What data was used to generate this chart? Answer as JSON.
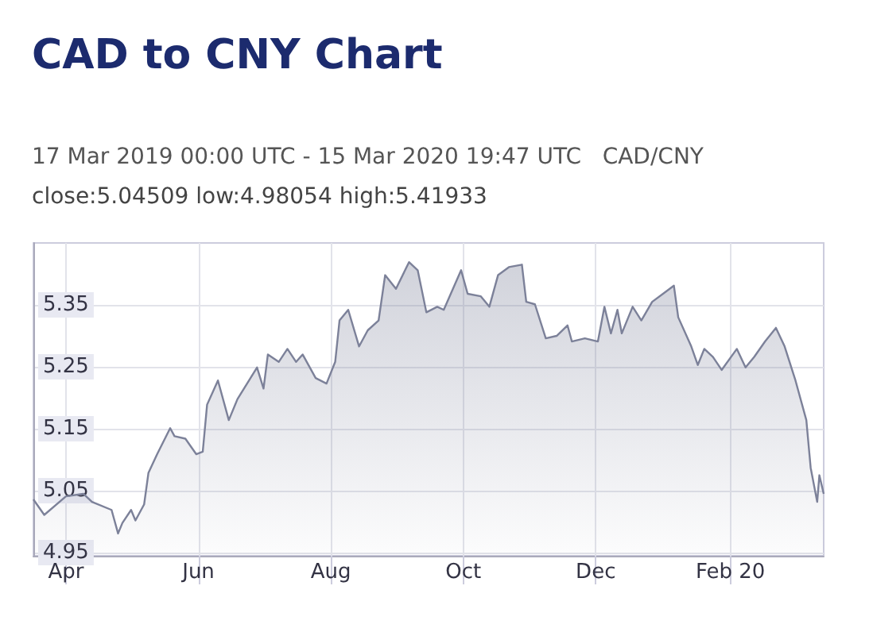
{
  "chart_data": {
    "type": "area",
    "title": "CAD to CNY Chart",
    "subtitle": "17 Mar 2019 00:00 UTC - 15 Mar 2020 19:47 UTC   CAD/CNY",
    "annotations": [
      "close:5.04509 low:4.98054 high:5.41933"
    ],
    "x": [
      "2019-03-17",
      "2019-03-22",
      "2019-04-01",
      "2019-04-09",
      "2019-04-13",
      "2019-04-22",
      "2019-04-25",
      "2019-04-27",
      "2019-05-01",
      "2019-05-03",
      "2019-05-07",
      "2019-05-09",
      "2019-05-13",
      "2019-05-19",
      "2019-05-21",
      "2019-05-26",
      "2019-05-31",
      "2019-06-03",
      "2019-06-05",
      "2019-06-10",
      "2019-06-15",
      "2019-06-19",
      "2019-06-25",
      "2019-06-28",
      "2019-07-01",
      "2019-07-03",
      "2019-07-08",
      "2019-07-12",
      "2019-07-16",
      "2019-07-19",
      "2019-07-25",
      "2019-07-30",
      "2019-08-03",
      "2019-08-05",
      "2019-08-09",
      "2019-08-14",
      "2019-08-18",
      "2019-08-23",
      "2019-08-26",
      "2019-08-31",
      "2019-09-06",
      "2019-09-10",
      "2019-09-14",
      "2019-09-19",
      "2019-09-22",
      "2019-09-30",
      "2019-10-03",
      "2019-10-09",
      "2019-10-13",
      "2019-10-17",
      "2019-10-22",
      "2019-10-28",
      "2019-10-30",
      "2019-11-03",
      "2019-11-08",
      "2019-11-13",
      "2019-11-18",
      "2019-11-20",
      "2019-11-26",
      "2019-12-02",
      "2019-12-05",
      "2019-12-08",
      "2019-12-11",
      "2019-12-13",
      "2019-12-18",
      "2019-12-22",
      "2019-12-27",
      "2020-01-01",
      "2020-01-06",
      "2020-01-08",
      "2020-01-14",
      "2020-01-17",
      "2020-01-20",
      "2020-01-24",
      "2020-01-28",
      "2020-02-04",
      "2020-02-08",
      "2020-02-12",
      "2020-02-17",
      "2020-02-22",
      "2020-02-26",
      "2020-03-02",
      "2020-03-07",
      "2020-03-09",
      "2020-03-12",
      "2020-03-13",
      "2020-03-15"
    ],
    "series": [
      {
        "color": "#7c8199",
        "values": [
          5.036,
          5.011,
          5.041,
          5.045,
          5.032,
          5.019,
          4.981,
          4.998,
          5.019,
          5.002,
          5.028,
          5.079,
          5.109,
          5.151,
          5.138,
          5.134,
          5.109,
          5.113,
          5.189,
          5.228,
          5.164,
          5.198,
          5.232,
          5.249,
          5.215,
          5.27,
          5.258,
          5.279,
          5.258,
          5.27,
          5.232,
          5.223,
          5.258,
          5.325,
          5.342,
          5.283,
          5.309,
          5.325,
          5.398,
          5.376,
          5.419,
          5.406,
          5.338,
          5.347,
          5.342,
          5.406,
          5.368,
          5.364,
          5.347,
          5.398,
          5.411,
          5.415,
          5.355,
          5.351,
          5.296,
          5.3,
          5.317,
          5.291,
          5.296,
          5.291,
          5.347,
          5.304,
          5.342,
          5.304,
          5.347,
          5.325,
          5.355,
          5.368,
          5.381,
          5.33,
          5.283,
          5.253,
          5.279,
          5.266,
          5.245,
          5.279,
          5.249,
          5.266,
          5.291,
          5.313,
          5.283,
          5.228,
          5.164,
          5.087,
          5.032,
          5.075,
          5.045
        ]
      }
    ],
    "xlim": [
      "2019-03-17",
      "2020-03-15"
    ],
    "xticks": [
      {
        "value": "2019-04-01",
        "label": "Apr"
      },
      {
        "value": "2019-06-01",
        "label": "Jun"
      },
      {
        "value": "2019-08-01",
        "label": "Aug"
      },
      {
        "value": "2019-10-01",
        "label": "Oct"
      },
      {
        "value": "2019-12-01",
        "label": "Dec"
      },
      {
        "value": "2020-02-01",
        "label": "Feb 20"
      }
    ],
    "ylim": [
      4.945,
      5.45
    ],
    "yticks": [
      4.95,
      5.05,
      5.15,
      5.25,
      5.35
    ],
    "grid": true,
    "marker": "none"
  }
}
